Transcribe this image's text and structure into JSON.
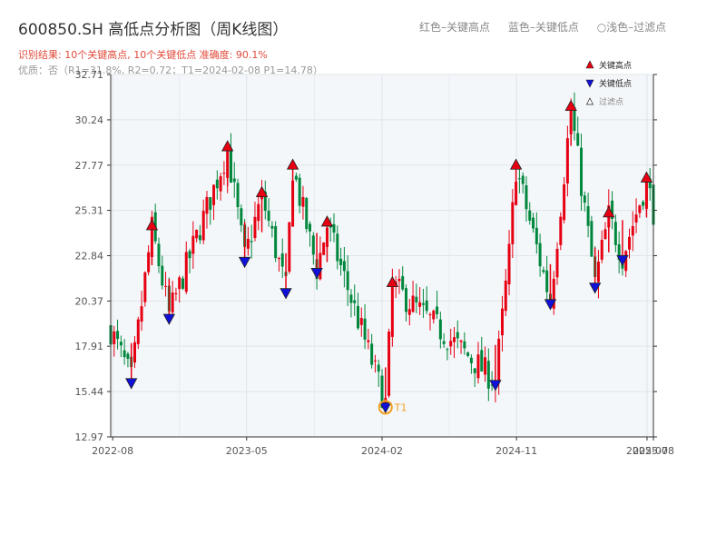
{
  "header": {
    "title": "600850.SH 高低点分析图（周K线图）",
    "result": "识别结果: 10个关键高点, 10个关键低点   准确度: 90.1%",
    "quality": "优质：否（R1=31.8%, R2=0.72；T1=2024-02-08 P1=14.78）",
    "top_legend": [
      "红色–关键高点",
      "蓝色–关键低点",
      "○浅色–过滤点"
    ]
  },
  "colors": {
    "up": "#e60012",
    "down": "#00873c",
    "high_marker": "#e60012",
    "low_marker": "#1010d8",
    "t1_ring": "#f0a020",
    "plot_bg": "#f4f7fa"
  },
  "chart_data": {
    "type": "candlestick",
    "x_type": "date",
    "x_range": [
      "2022-07-28",
      "2025-08-07"
    ],
    "ylim": [
      12.97,
      32.71
    ],
    "grid": true,
    "y_ticks": [
      "32.71",
      "30.24",
      "27.77",
      "25.31",
      "22.84",
      "20.37",
      "17.91",
      "15.44",
      "12.97"
    ],
    "x_ticks": [
      {
        "date": "2022-08-01",
        "label": "2022-08"
      },
      {
        "date": "2023-05-01",
        "label": "2023-05"
      },
      {
        "date": "2024-02-01",
        "label": "2024-02"
      },
      {
        "date": "2024-11-01",
        "label": "2024-11"
      },
      {
        "date": "2025-07-25",
        "label": "2025-07"
      },
      {
        "date": "2025-08-07",
        "label": "2025-08"
      }
    ],
    "legend": {
      "position": "top-right",
      "items": [
        {
          "kind": "high",
          "label": "关键高点"
        },
        {
          "kind": "low",
          "label": "关键低点"
        },
        {
          "kind": "filtered",
          "label": "过滤点"
        }
      ]
    },
    "waypoints": [
      {
        "date": "2022-07-28",
        "price": 18.8
      },
      {
        "date": "2022-09-08",
        "price": 16.1
      },
      {
        "date": "2022-10-20",
        "price": 24.3
      },
      {
        "date": "2022-11-24",
        "price": 19.6
      },
      {
        "date": "2023-03-23",
        "price": 28.6
      },
      {
        "date": "2023-04-27",
        "price": 22.7
      },
      {
        "date": "2023-06-01",
        "price": 26.1
      },
      {
        "date": "2023-07-20",
        "price": 21.0
      },
      {
        "date": "2023-08-03",
        "price": 27.6
      },
      {
        "date": "2023-09-21",
        "price": 22.1
      },
      {
        "date": "2023-10-12",
        "price": 24.5
      },
      {
        "date": "2024-02-08",
        "price": 14.78
      },
      {
        "date": "2024-02-22",
        "price": 21.2
      },
      {
        "date": "2024-09-19",
        "price": 16.0
      },
      {
        "date": "2024-10-17",
        "price": 22.9
      },
      {
        "date": "2024-10-31",
        "price": 27.6
      },
      {
        "date": "2025-01-09",
        "price": 20.4
      },
      {
        "date": "2025-02-20",
        "price": 30.8
      },
      {
        "date": "2025-04-10",
        "price": 21.3
      },
      {
        "date": "2025-05-08",
        "price": 25.0
      },
      {
        "date": "2025-06-05",
        "price": 22.8
      },
      {
        "date": "2025-07-24",
        "price": 26.9
      },
      {
        "date": "2025-08-07",
        "price": 25.3
      }
    ],
    "key_highs": [
      {
        "date": "2022-10-20",
        "price": 24.3
      },
      {
        "date": "2023-03-23",
        "price": 28.6
      },
      {
        "date": "2023-06-01",
        "price": 26.1
      },
      {
        "date": "2023-08-03",
        "price": 27.6
      },
      {
        "date": "2023-10-12",
        "price": 24.5
      },
      {
        "date": "2024-02-22",
        "price": 21.2
      },
      {
        "date": "2024-10-31",
        "price": 27.6
      },
      {
        "date": "2025-02-20",
        "price": 30.8
      },
      {
        "date": "2025-05-08",
        "price": 25.0
      },
      {
        "date": "2025-07-24",
        "price": 26.9
      }
    ],
    "key_lows": [
      {
        "date": "2022-09-08",
        "price": 16.1
      },
      {
        "date": "2022-11-24",
        "price": 19.6
      },
      {
        "date": "2023-04-27",
        "price": 22.7
      },
      {
        "date": "2023-07-20",
        "price": 21.0
      },
      {
        "date": "2023-09-21",
        "price": 22.1
      },
      {
        "date": "2024-02-08",
        "price": 14.78
      },
      {
        "date": "2024-09-19",
        "price": 16.0
      },
      {
        "date": "2025-01-09",
        "price": 20.4
      },
      {
        "date": "2025-04-10",
        "price": 21.3
      },
      {
        "date": "2025-06-05",
        "price": 22.8
      }
    ],
    "annotations": [
      {
        "label": "T1",
        "date": "2024-02-08",
        "price": 14.78
      }
    ]
  }
}
